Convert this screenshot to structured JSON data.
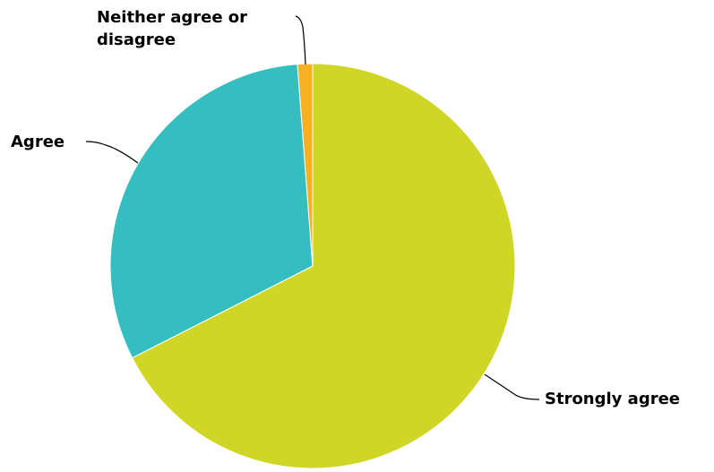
{
  "chart_data": {
    "type": "pie",
    "slices": [
      {
        "label": "Strongly agree",
        "value": 67.5,
        "color": "#cfd626"
      },
      {
        "label": "Agree",
        "value": 31.3,
        "color": "#35bec0"
      },
      {
        "label": "Neither agree or disagree",
        "label_lines": [
          "Neither agree or",
          "disagree"
        ],
        "value": 1.2,
        "color": "#f6b021"
      }
    ],
    "title": "",
    "legend": "none",
    "start_angle": "12 o'clock",
    "direction": "clockwise"
  }
}
